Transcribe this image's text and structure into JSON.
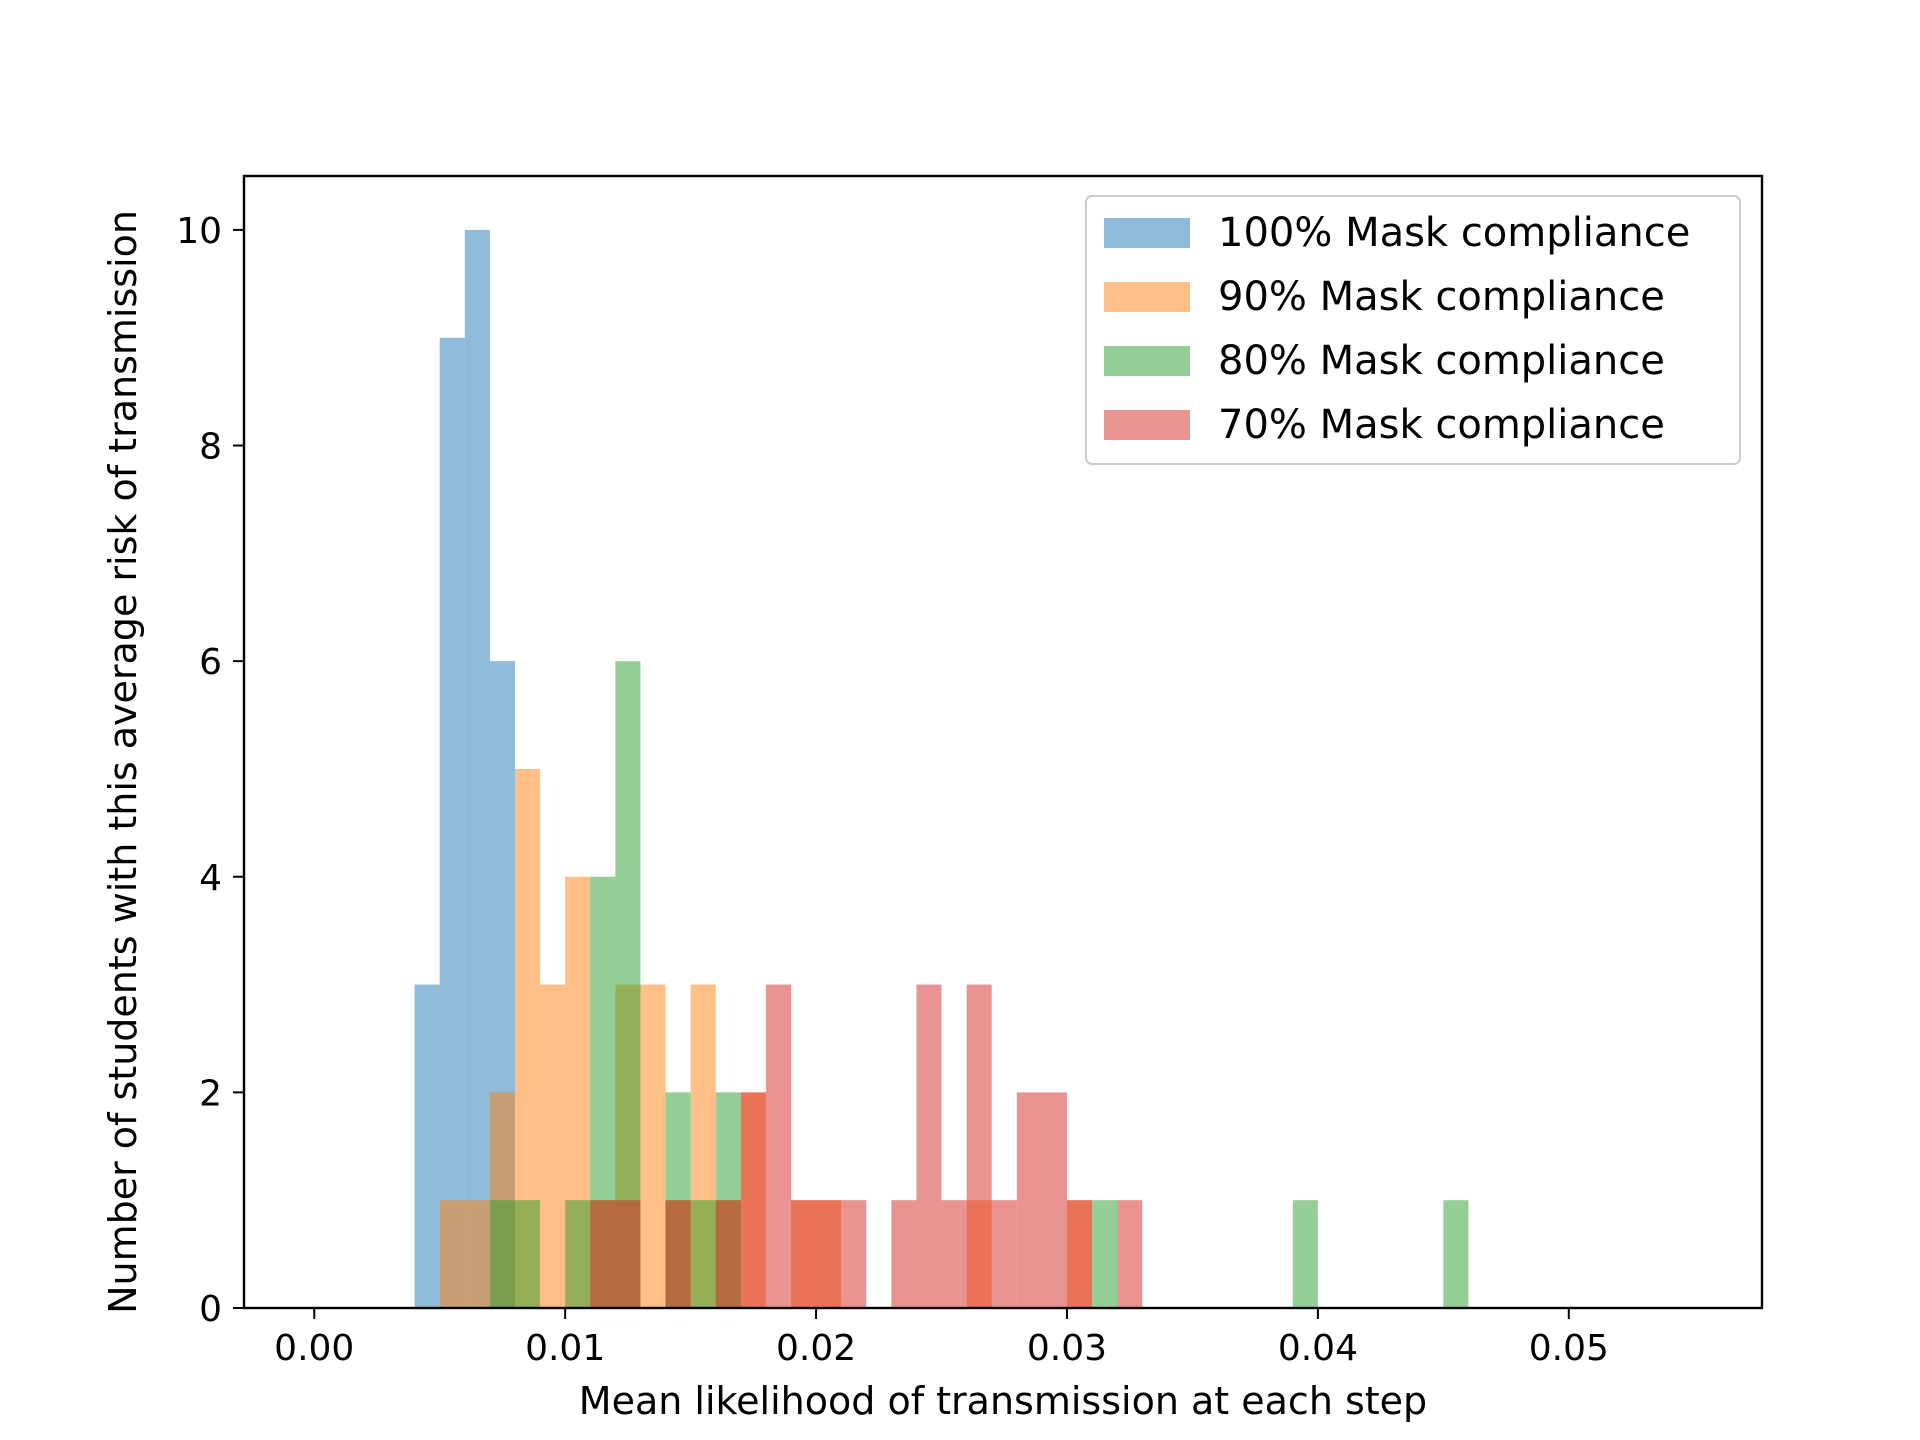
{
  "chart_data": {
    "type": "bar",
    "subtype": "histogram-overlay",
    "title": "",
    "xlabel": "Mean likelihood of transmission at each step",
    "ylabel": "Number of students with this average risk of transmission",
    "xlim": [
      -0.0028,
      0.0577
    ],
    "ylim": [
      0,
      10.5
    ],
    "x_ticks": [
      0.0,
      0.01,
      0.02,
      0.03,
      0.04,
      0.05
    ],
    "x_tick_labels": [
      "0.00",
      "0.01",
      "0.02",
      "0.03",
      "0.04",
      "0.05"
    ],
    "y_ticks": [
      0,
      2,
      4,
      6,
      8,
      10
    ],
    "y_tick_labels": [
      "0",
      "2",
      "4",
      "6",
      "8",
      "10"
    ],
    "bin_width": 0.001,
    "alpha": 0.5,
    "grid": false,
    "legend_position": "top-right",
    "series": [
      {
        "name": "100% Mask compliance",
        "color": "#1f77b4",
        "bins": [
          {
            "x0": 0.004,
            "x1": 0.005,
            "count": 3
          },
          {
            "x0": 0.005,
            "x1": 0.006,
            "count": 9
          },
          {
            "x0": 0.006,
            "x1": 0.007,
            "count": 10
          },
          {
            "x0": 0.007,
            "x1": 0.008,
            "count": 6
          }
        ]
      },
      {
        "name": "90% Mask compliance",
        "color": "#ff7f0e",
        "bins": [
          {
            "x0": 0.005,
            "x1": 0.006,
            "count": 1
          },
          {
            "x0": 0.006,
            "x1": 0.007,
            "count": 1
          },
          {
            "x0": 0.007,
            "x1": 0.008,
            "count": 2
          },
          {
            "x0": 0.008,
            "x1": 0.009,
            "count": 5
          },
          {
            "x0": 0.009,
            "x1": 0.01,
            "count": 3
          },
          {
            "x0": 0.01,
            "x1": 0.011,
            "count": 4
          },
          {
            "x0": 0.011,
            "x1": 0.012,
            "count": 1
          },
          {
            "x0": 0.012,
            "x1": 0.013,
            "count": 3
          },
          {
            "x0": 0.013,
            "x1": 0.014,
            "count": 3
          },
          {
            "x0": 0.014,
            "x1": 0.015,
            "count": 1
          },
          {
            "x0": 0.015,
            "x1": 0.016,
            "count": 3
          },
          {
            "x0": 0.016,
            "x1": 0.017,
            "count": 1
          },
          {
            "x0": 0.017,
            "x1": 0.018,
            "count": 2
          },
          {
            "x0": 0.019,
            "x1": 0.02,
            "count": 1
          },
          {
            "x0": 0.02,
            "x1": 0.021,
            "count": 1
          },
          {
            "x0": 0.026,
            "x1": 0.027,
            "count": 1
          },
          {
            "x0": 0.03,
            "x1": 0.031,
            "count": 1
          }
        ]
      },
      {
        "name": "80% Mask compliance",
        "color": "#2ca02c",
        "bins": [
          {
            "x0": 0.007,
            "x1": 0.008,
            "count": 1
          },
          {
            "x0": 0.008,
            "x1": 0.009,
            "count": 1
          },
          {
            "x0": 0.01,
            "x1": 0.011,
            "count": 1
          },
          {
            "x0": 0.011,
            "x1": 0.012,
            "count": 4
          },
          {
            "x0": 0.012,
            "x1": 0.013,
            "count": 6
          },
          {
            "x0": 0.014,
            "x1": 0.015,
            "count": 2
          },
          {
            "x0": 0.015,
            "x1": 0.016,
            "count": 1
          },
          {
            "x0": 0.016,
            "x1": 0.017,
            "count": 2
          },
          {
            "x0": 0.031,
            "x1": 0.032,
            "count": 1
          },
          {
            "x0": 0.039,
            "x1": 0.04,
            "count": 1
          },
          {
            "x0": 0.045,
            "x1": 0.046,
            "count": 1
          }
        ]
      },
      {
        "name": "70% Mask compliance",
        "color": "#d62728",
        "bins": [
          {
            "x0": 0.011,
            "x1": 0.012,
            "count": 1
          },
          {
            "x0": 0.012,
            "x1": 0.013,
            "count": 1
          },
          {
            "x0": 0.014,
            "x1": 0.015,
            "count": 1
          },
          {
            "x0": 0.016,
            "x1": 0.017,
            "count": 1
          },
          {
            "x0": 0.017,
            "x1": 0.018,
            "count": 2
          },
          {
            "x0": 0.018,
            "x1": 0.019,
            "count": 3
          },
          {
            "x0": 0.019,
            "x1": 0.02,
            "count": 1
          },
          {
            "x0": 0.02,
            "x1": 0.021,
            "count": 1
          },
          {
            "x0": 0.021,
            "x1": 0.022,
            "count": 1
          },
          {
            "x0": 0.023,
            "x1": 0.024,
            "count": 1
          },
          {
            "x0": 0.024,
            "x1": 0.025,
            "count": 3
          },
          {
            "x0": 0.025,
            "x1": 0.026,
            "count": 1
          },
          {
            "x0": 0.026,
            "x1": 0.027,
            "count": 3
          },
          {
            "x0": 0.027,
            "x1": 0.028,
            "count": 1
          },
          {
            "x0": 0.028,
            "x1": 0.029,
            "count": 2
          },
          {
            "x0": 0.029,
            "x1": 0.03,
            "count": 2
          },
          {
            "x0": 0.03,
            "x1": 0.031,
            "count": 1
          },
          {
            "x0": 0.032,
            "x1": 0.033,
            "count": 1
          }
        ]
      }
    ]
  }
}
